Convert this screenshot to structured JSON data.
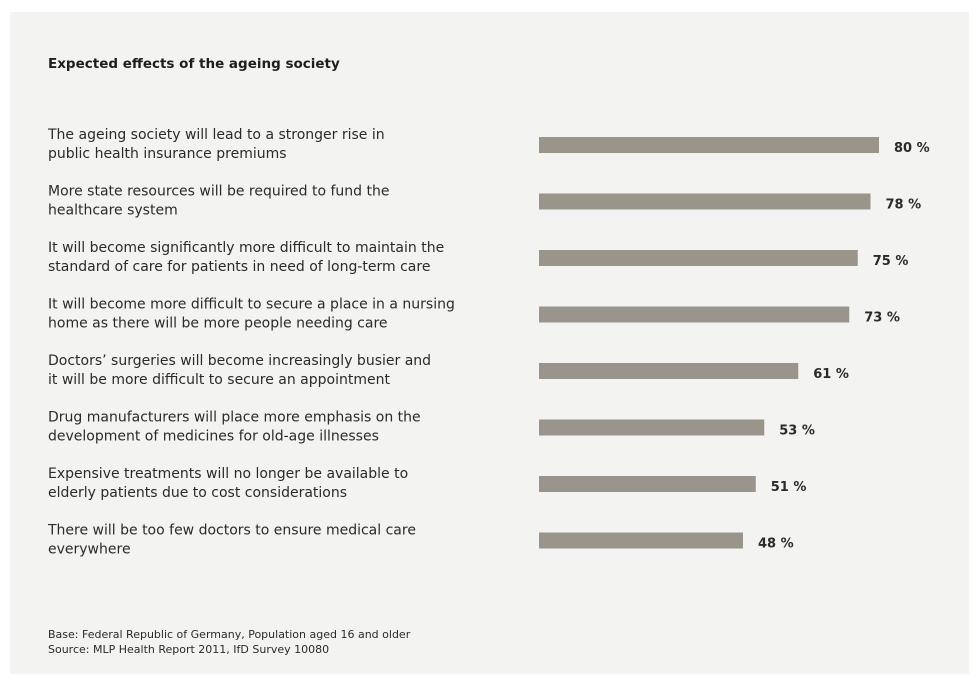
{
  "chart_data": {
    "type": "bar",
    "orientation": "horizontal",
    "title": "Expected effects of the ageing society",
    "categories": [
      [
        "The ageing society will lead to a stronger rise in",
        "public health insurance premiums"
      ],
      [
        "More state resources will be required to fund the",
        "healthcare system"
      ],
      [
        "It will become significantly more difficult to maintain the",
        "standard of care for patients in need of long-term care"
      ],
      [
        "It will become more difficult to secure a place in a nursing",
        "home as there will be more people needing care"
      ],
      [
        "Doctors’ surgeries will become increasingly busier and",
        "it will be more difficult to secure an appointment"
      ],
      [
        "Drug manufacturers will place more emphasis on the",
        "development of medicines for old-age illnesses"
      ],
      [
        "Expensive treatments will no longer be available to",
        "elderly patients due to cost considerations"
      ],
      [
        "There will be too few doctors to ensure medical care",
        "everywhere"
      ]
    ],
    "values": [
      80,
      78,
      75,
      73,
      61,
      53,
      51,
      48
    ],
    "value_labels": [
      "80 %",
      "78 %",
      "75 %",
      "73 %",
      "61 %",
      "53 %",
      "51 %",
      "48 %"
    ],
    "xlim": [
      0,
      100
    ],
    "grid": false,
    "bar_color": "#99958a"
  },
  "footnotes": {
    "base": "Base: Federal Republic of Germany, Population aged 16 and older",
    "source": "Source: MLP Health Report  2011, IfD Survey 10080"
  }
}
